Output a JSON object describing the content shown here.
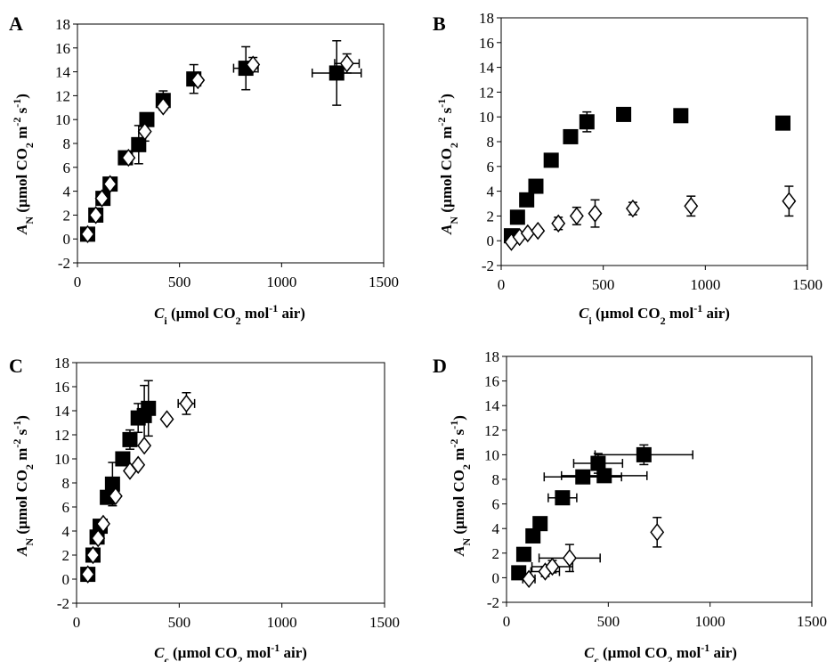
{
  "figure": {
    "panels": [
      {
        "label": "A",
        "xlabel": {
          "main": "C",
          "sub": "i",
          "rest": " (µmol CO",
          "sub2": "2",
          "rest2": " mol",
          "sup": "-1",
          "rest3": " air)"
        },
        "ylabel": {
          "main": "A",
          "sub": "N",
          "rest": " (µmol CO",
          "sub2": "2",
          "rest2": " m",
          "sup": "-2",
          "rest3": " s",
          "sup2": "-1",
          "rest4": ")"
        }
      },
      {
        "label": "B",
        "xlabel": {
          "main": "C",
          "sub": "i",
          "rest": " (µmol CO",
          "sub2": "2",
          "rest2": " mol",
          "sup": "-1",
          "rest3": " air)"
        },
        "ylabel": {
          "main": "A",
          "sub": "N",
          "rest": " (µmol CO",
          "sub2": "2",
          "rest2": " m",
          "sup": "-2",
          "rest3": " s",
          "sup2": "-1",
          "rest4": ")"
        }
      },
      {
        "label": "C",
        "xlabel": {
          "main": "C",
          "sub": "c",
          "rest": " (µmol CO",
          "sub2": "2",
          "rest2": " mol",
          "sup": "-1",
          "rest3": " air)"
        },
        "ylabel": {
          "main": "A",
          "sub": "N",
          "rest": " (µmol CO",
          "sub2": "2",
          "rest2": " m",
          "sup": "-2",
          "rest3": " s",
          "sup2": "-1",
          "rest4": ")"
        }
      },
      {
        "label": "D",
        "xlabel": {
          "main": "C",
          "sub": "c",
          "rest": " (µmol CO",
          "sub2": "2",
          "rest2": " mol",
          "sup": "-1",
          "rest3": " air)"
        },
        "ylabel": {
          "main": "A",
          "sub": "N",
          "rest": " (µmol CO",
          "sub2": "2",
          "rest2": " m",
          "sup": "-2",
          "rest3": " s",
          "sup2": "-1",
          "rest4": ")"
        }
      }
    ]
  },
  "chart_data": [
    {
      "type": "scatter",
      "panel": "A",
      "xlim": [
        0,
        1500
      ],
      "ylim": [
        -2,
        18
      ],
      "xticks": [
        0,
        500,
        1000,
        1500
      ],
      "yticks": [
        -2,
        0,
        2,
        4,
        6,
        8,
        10,
        12,
        14,
        16,
        18
      ],
      "grid": false,
      "series": [
        {
          "marker": "filled-square",
          "color": "#000000",
          "points": [
            {
              "x": 50,
              "y": 0.4
            },
            {
              "x": 90,
              "y": 2.0
            },
            {
              "x": 125,
              "y": 3.4
            },
            {
              "x": 160,
              "y": 4.6
            },
            {
              "x": 235,
              "y": 6.8
            },
            {
              "x": 300,
              "y": 7.9,
              "yerr": 1.6
            },
            {
              "x": 340,
              "y": 10.0
            },
            {
              "x": 420,
              "y": 11.6,
              "yerr": 0.8
            },
            {
              "x": 570,
              "y": 13.4,
              "yerr": 1.2
            },
            {
              "x": 825,
              "y": 14.3,
              "yerr": 1.8,
              "xerr": 60
            },
            {
              "x": 1270,
              "y": 13.9,
              "yerr": 2.7,
              "xerr": 120
            }
          ]
        },
        {
          "marker": "open-diamond",
          "color": "#000000",
          "points": [
            {
              "x": 50,
              "y": 0.4
            },
            {
              "x": 90,
              "y": 2.0
            },
            {
              "x": 120,
              "y": 3.4
            },
            {
              "x": 160,
              "y": 4.6
            },
            {
              "x": 250,
              "y": 6.8
            },
            {
              "x": 330,
              "y": 9.0,
              "yerr": 0.8
            },
            {
              "x": 420,
              "y": 11.1
            },
            {
              "x": 590,
              "y": 13.3
            },
            {
              "x": 860,
              "y": 14.6,
              "yerr": 0.6
            },
            {
              "x": 1320,
              "y": 14.7,
              "yerr": 0.8,
              "xerr": 60
            }
          ]
        }
      ]
    },
    {
      "type": "scatter",
      "panel": "B",
      "xlim": [
        0,
        1500
      ],
      "ylim": [
        -2,
        18
      ],
      "xticks": [
        0,
        500,
        1000,
        1500
      ],
      "yticks": [
        -2,
        0,
        2,
        4,
        6,
        8,
        10,
        12,
        14,
        16,
        18
      ],
      "grid": false,
      "series": [
        {
          "marker": "filled-square",
          "color": "#000000",
          "points": [
            {
              "x": 50,
              "y": 0.4
            },
            {
              "x": 80,
              "y": 1.9
            },
            {
              "x": 125,
              "y": 3.3
            },
            {
              "x": 170,
              "y": 4.4
            },
            {
              "x": 245,
              "y": 6.5
            },
            {
              "x": 340,
              "y": 8.4,
              "yerr": 0.5
            },
            {
              "x": 420,
              "y": 9.6,
              "yerr": 0.8
            },
            {
              "x": 600,
              "y": 10.2,
              "yerr": 0.5
            },
            {
              "x": 880,
              "y": 10.1
            },
            {
              "x": 1380,
              "y": 9.5
            }
          ]
        },
        {
          "marker": "open-diamond",
          "color": "#000000",
          "points": [
            {
              "x": 50,
              "y": -0.1
            },
            {
              "x": 90,
              "y": 0.3
            },
            {
              "x": 130,
              "y": 0.6
            },
            {
              "x": 180,
              "y": 0.8
            },
            {
              "x": 280,
              "y": 1.4,
              "yerr": 0.5
            },
            {
              "x": 370,
              "y": 2.0,
              "yerr": 0.7
            },
            {
              "x": 460,
              "y": 2.2,
              "yerr": 1.1
            },
            {
              "x": 645,
              "y": 2.6,
              "yerr": 0.5
            },
            {
              "x": 930,
              "y": 2.8,
              "yerr": 0.8
            },
            {
              "x": 1410,
              "y": 3.2,
              "yerr": 1.2
            }
          ]
        }
      ]
    },
    {
      "type": "scatter",
      "panel": "C",
      "xlim": [
        0,
        1500
      ],
      "ylim": [
        -2,
        18
      ],
      "xticks": [
        0,
        500,
        1000,
        1500
      ],
      "yticks": [
        -2,
        0,
        2,
        4,
        6,
        8,
        10,
        12,
        14,
        16,
        18
      ],
      "grid": false,
      "series": [
        {
          "marker": "filled-square",
          "color": "#000000",
          "points": [
            {
              "x": 55,
              "y": 0.4
            },
            {
              "x": 80,
              "y": 2.0
            },
            {
              "x": 100,
              "y": 3.5
            },
            {
              "x": 115,
              "y": 4.4
            },
            {
              "x": 150,
              "y": 6.8
            },
            {
              "x": 175,
              "y": 7.9,
              "yerr": 1.8
            },
            {
              "x": 225,
              "y": 10.0
            },
            {
              "x": 260,
              "y": 11.6,
              "yerr": 0.8
            },
            {
              "x": 300,
              "y": 13.4,
              "yerr": 1.2
            },
            {
              "x": 330,
              "y": 13.6,
              "yerr": 2.5
            },
            {
              "x": 350,
              "y": 14.2,
              "yerr": 2.3
            }
          ]
        },
        {
          "marker": "open-diamond",
          "color": "#000000",
          "points": [
            {
              "x": 55,
              "y": 0.4
            },
            {
              "x": 80,
              "y": 2.0
            },
            {
              "x": 105,
              "y": 3.4
            },
            {
              "x": 130,
              "y": 4.6
            },
            {
              "x": 190,
              "y": 6.9
            },
            {
              "x": 260,
              "y": 9.0
            },
            {
              "x": 300,
              "y": 9.5
            },
            {
              "x": 330,
              "y": 11.1
            },
            {
              "x": 440,
              "y": 13.3
            },
            {
              "x": 535,
              "y": 14.6,
              "yerr": 0.9,
              "xerr": 40
            }
          ]
        }
      ]
    },
    {
      "type": "scatter",
      "panel": "D",
      "xlim": [
        0,
        1500
      ],
      "ylim": [
        -2,
        18
      ],
      "xticks": [
        0,
        500,
        1000,
        1500
      ],
      "yticks": [
        -2,
        0,
        2,
        4,
        6,
        8,
        10,
        12,
        14,
        16,
        18
      ],
      "grid": false,
      "series": [
        {
          "marker": "filled-square",
          "color": "#000000",
          "points": [
            {
              "x": 60,
              "y": 0.4
            },
            {
              "x": 85,
              "y": 1.9
            },
            {
              "x": 130,
              "y": 3.4
            },
            {
              "x": 165,
              "y": 4.4
            },
            {
              "x": 275,
              "y": 6.5,
              "xerr": 70
            },
            {
              "x": 375,
              "y": 8.2,
              "xerr": 190
            },
            {
              "x": 450,
              "y": 9.3,
              "xerr": 120,
              "yerr": 0.8
            },
            {
              "x": 480,
              "y": 8.3,
              "xerr": 210
            },
            {
              "x": 675,
              "y": 10.0,
              "xerr": 240,
              "yerr": 0.8
            }
          ]
        },
        {
          "marker": "open-diamond",
          "color": "#000000",
          "points": [
            {
              "x": 110,
              "y": -0.1,
              "xerr": 30
            },
            {
              "x": 190,
              "y": 0.5,
              "xerr": 70,
              "yerr": 0.4
            },
            {
              "x": 225,
              "y": 0.9,
              "xerr": 100,
              "yerr": 0.5
            },
            {
              "x": 310,
              "y": 1.6,
              "xerr": 150,
              "yerr": 1.1
            },
            {
              "x": 740,
              "y": 3.7,
              "yerr": 1.2
            }
          ]
        }
      ]
    }
  ]
}
